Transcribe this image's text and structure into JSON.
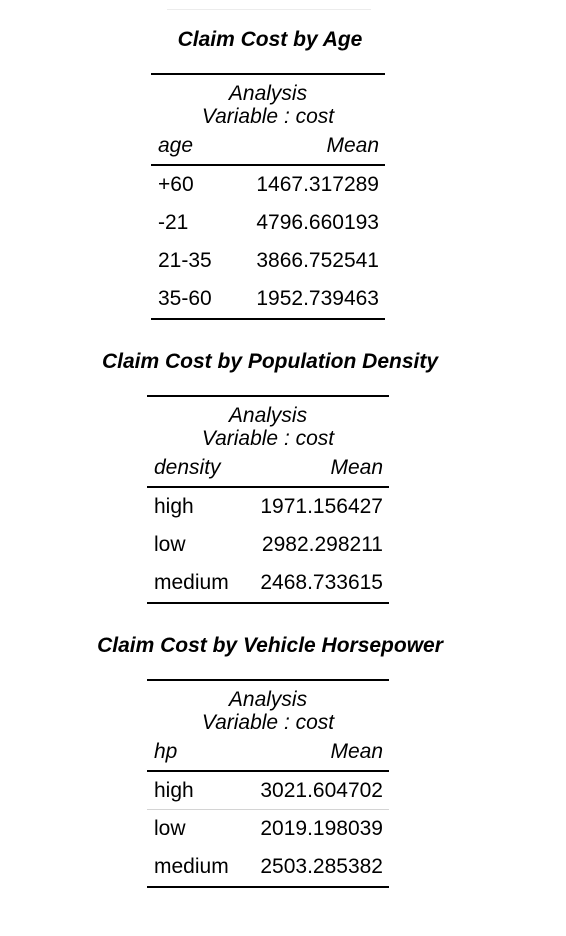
{
  "sections": [
    {
      "title": "Claim Cost by Age",
      "analysis_line1": "Analysis",
      "analysis_line2": "Variable : cost",
      "class_header": "age",
      "stat_header": "Mean",
      "rows": [
        {
          "category": "+60",
          "mean": "1467.317289"
        },
        {
          "category": "-21",
          "mean": "4796.660193"
        },
        {
          "category": "21-35",
          "mean": "3866.752541"
        },
        {
          "category": "35-60",
          "mean": "1952.739463"
        }
      ]
    },
    {
      "title": "Claim Cost by Population Density",
      "analysis_line1": "Analysis",
      "analysis_line2": "Variable : cost",
      "class_header": "density",
      "stat_header": "Mean",
      "rows": [
        {
          "category": "high",
          "mean": "1971.156427"
        },
        {
          "category": "low",
          "mean": "2982.298211"
        },
        {
          "category": "medium",
          "mean": "2468.733615"
        }
      ]
    },
    {
      "title": "Claim Cost by Vehicle Horsepower",
      "analysis_line1": "Analysis",
      "analysis_line2": "Variable : cost",
      "class_header": "hp",
      "stat_header": "Mean",
      "rows": [
        {
          "category": "high",
          "mean": "3021.604702"
        },
        {
          "category": "low",
          "mean": "2019.198039"
        },
        {
          "category": "medium",
          "mean": "2503.285382"
        }
      ]
    }
  ]
}
